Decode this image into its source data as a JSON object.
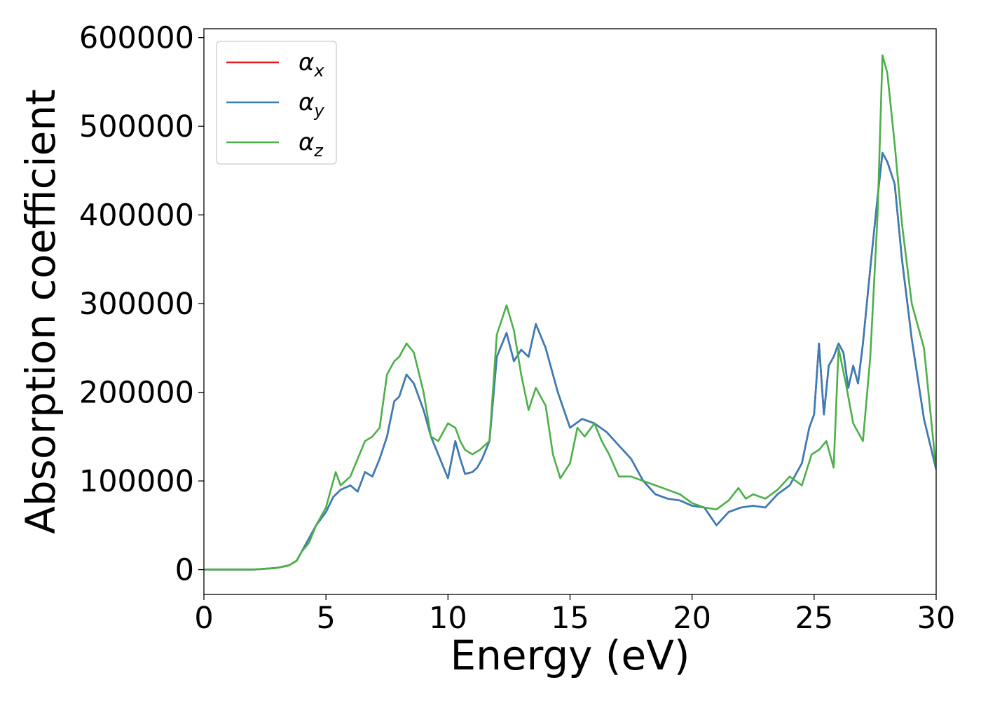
{
  "chart_data": {
    "type": "line",
    "xlabel": "Energy (eV)",
    "ylabel": "Absorption coefficient",
    "xlim": [
      0,
      30
    ],
    "ylim": [
      -28000,
      610000
    ],
    "xticks": [
      0,
      5,
      10,
      15,
      20,
      25,
      30
    ],
    "xtick_labels": [
      "0",
      "5",
      "10",
      "15",
      "20",
      "25",
      "30"
    ],
    "yticks": [
      0,
      100000,
      200000,
      300000,
      400000,
      500000,
      600000
    ],
    "ytick_labels": [
      "0",
      "100000",
      "200000",
      "300000",
      "400000",
      "500000",
      "600000"
    ],
    "grid": false,
    "legend_position": "upper-left",
    "series": [
      {
        "name": "α_x",
        "legend_base": "α",
        "legend_sub": "x",
        "color": "#e41a1c",
        "x": [
          0,
          1,
          2,
          3,
          3.5,
          3.8,
          4.0,
          4.3,
          4.6,
          5.0,
          5.3,
          5.6,
          6.0,
          6.3,
          6.6,
          6.9,
          7.2,
          7.5,
          7.8,
          8.0,
          8.3,
          8.6,
          9.0,
          9.3,
          9.6,
          10.0,
          10.3,
          10.5,
          10.7,
          11.0,
          11.2,
          11.4,
          11.7,
          12.0,
          12.4,
          12.7,
          13.0,
          13.3,
          13.6,
          14.0,
          14.5,
          15.0,
          15.5,
          16.0,
          16.5,
          17.0,
          17.5,
          18.0,
          18.5,
          19.0,
          19.5,
          20.0,
          20.5,
          21.0,
          21.5,
          22.0,
          22.5,
          23.0,
          23.5,
          24.0,
          24.5,
          24.8,
          25.0,
          25.2,
          25.4,
          25.6,
          25.8,
          26.0,
          26.2,
          26.4,
          26.6,
          26.8,
          27.0,
          27.3,
          27.6,
          27.8,
          28.0,
          28.3,
          28.6,
          29.0,
          29.5,
          30.0
        ],
        "y": [
          0,
          0,
          0,
          2000,
          5000,
          10000,
          20000,
          35000,
          50000,
          65000,
          82000,
          90000,
          95000,
          88000,
          110000,
          105000,
          125000,
          150000,
          190000,
          195000,
          220000,
          210000,
          180000,
          150000,
          130000,
          103000,
          145000,
          125000,
          108000,
          110000,
          115000,
          125000,
          145000,
          240000,
          267000,
          235000,
          248000,
          240000,
          277000,
          250000,
          200000,
          160000,
          170000,
          165000,
          155000,
          140000,
          125000,
          100000,
          85000,
          80000,
          78000,
          72000,
          70000,
          50000,
          65000,
          70000,
          72000,
          70000,
          85000,
          95000,
          120000,
          160000,
          175000,
          255000,
          175000,
          230000,
          240000,
          255000,
          245000,
          205000,
          230000,
          210000,
          255000,
          340000,
          420000,
          470000,
          460000,
          435000,
          350000,
          260000,
          170000,
          113000
        ]
      },
      {
        "name": "α_y",
        "legend_base": "α",
        "legend_sub": "y",
        "color": "#377eb8",
        "x": [
          0,
          1,
          2,
          3,
          3.5,
          3.8,
          4.0,
          4.3,
          4.6,
          5.0,
          5.3,
          5.6,
          6.0,
          6.3,
          6.6,
          6.9,
          7.2,
          7.5,
          7.8,
          8.0,
          8.3,
          8.6,
          9.0,
          9.3,
          9.6,
          10.0,
          10.3,
          10.5,
          10.7,
          11.0,
          11.2,
          11.4,
          11.7,
          12.0,
          12.4,
          12.7,
          13.0,
          13.3,
          13.6,
          14.0,
          14.5,
          15.0,
          15.5,
          16.0,
          16.5,
          17.0,
          17.5,
          18.0,
          18.5,
          19.0,
          19.5,
          20.0,
          20.5,
          21.0,
          21.5,
          22.0,
          22.5,
          23.0,
          23.5,
          24.0,
          24.5,
          24.8,
          25.0,
          25.2,
          25.4,
          25.6,
          25.8,
          26.0,
          26.2,
          26.4,
          26.6,
          26.8,
          27.0,
          27.3,
          27.6,
          27.8,
          28.0,
          28.3,
          28.6,
          29.0,
          29.5,
          30.0
        ],
        "y": [
          0,
          0,
          0,
          2000,
          5000,
          10000,
          20000,
          35000,
          50000,
          65000,
          82000,
          90000,
          95000,
          88000,
          110000,
          105000,
          125000,
          150000,
          190000,
          195000,
          220000,
          210000,
          180000,
          150000,
          130000,
          103000,
          145000,
          125000,
          108000,
          110000,
          115000,
          125000,
          145000,
          240000,
          267000,
          235000,
          248000,
          240000,
          277000,
          250000,
          200000,
          160000,
          170000,
          165000,
          155000,
          140000,
          125000,
          100000,
          85000,
          80000,
          78000,
          72000,
          70000,
          50000,
          65000,
          70000,
          72000,
          70000,
          85000,
          95000,
          120000,
          160000,
          175000,
          255000,
          175000,
          230000,
          240000,
          255000,
          245000,
          205000,
          230000,
          210000,
          255000,
          340000,
          420000,
          470000,
          460000,
          435000,
          350000,
          260000,
          170000,
          113000
        ]
      },
      {
        "name": "α_z",
        "legend_base": "α",
        "legend_sub": "z",
        "color": "#4daf4a",
        "x": [
          0,
          1,
          2,
          3,
          3.5,
          3.8,
          4.0,
          4.3,
          4.6,
          5.0,
          5.2,
          5.4,
          5.6,
          6.0,
          6.3,
          6.6,
          6.9,
          7.2,
          7.5,
          7.8,
          8.0,
          8.3,
          8.6,
          9.0,
          9.3,
          9.6,
          10.0,
          10.3,
          10.5,
          10.7,
          11.0,
          11.3,
          11.7,
          12.0,
          12.4,
          12.7,
          13.0,
          13.3,
          13.6,
          14.0,
          14.3,
          14.6,
          15.0,
          15.3,
          15.6,
          16.0,
          16.3,
          16.6,
          17.0,
          17.5,
          18.0,
          18.5,
          19.0,
          19.5,
          20.0,
          20.5,
          21.0,
          21.5,
          21.9,
          22.2,
          22.5,
          23.0,
          23.5,
          24.0,
          24.5,
          24.9,
          25.2,
          25.5,
          25.8,
          26.0,
          26.3,
          26.6,
          27.0,
          27.3,
          27.6,
          27.8,
          28.0,
          28.3,
          28.6,
          29.0,
          29.5,
          30.0
        ],
        "y": [
          0,
          0,
          0,
          2000,
          5000,
          10000,
          20000,
          30000,
          50000,
          70000,
          90000,
          110000,
          95000,
          105000,
          125000,
          145000,
          150000,
          160000,
          220000,
          235000,
          240000,
          255000,
          245000,
          200000,
          150000,
          145000,
          165000,
          160000,
          145000,
          135000,
          130000,
          135000,
          145000,
          265000,
          298000,
          270000,
          220000,
          180000,
          205000,
          185000,
          130000,
          103000,
          120000,
          160000,
          150000,
          165000,
          145000,
          130000,
          105000,
          105000,
          100000,
          95000,
          90000,
          85000,
          75000,
          70000,
          68000,
          78000,
          92000,
          80000,
          85000,
          80000,
          90000,
          105000,
          95000,
          130000,
          135000,
          145000,
          115000,
          250000,
          210000,
          165000,
          145000,
          240000,
          400000,
          580000,
          560000,
          480000,
          390000,
          300000,
          250000,
          113000
        ]
      }
    ]
  }
}
